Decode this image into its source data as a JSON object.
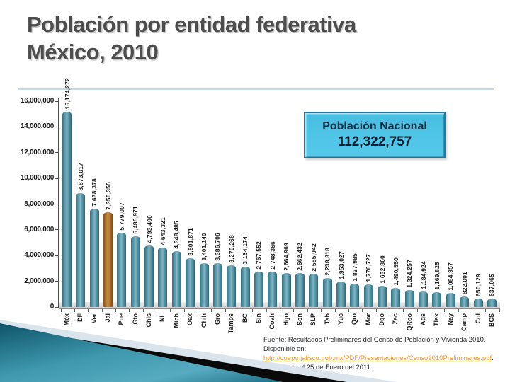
{
  "slide": {
    "title_line1": "Población por entidad federativa",
    "title_line2": "México, 2010"
  },
  "chart_data": {
    "type": "bar",
    "title": "",
    "xlabel": "",
    "ylabel": "",
    "ylim": [
      0,
      16000000
    ],
    "ytick_step": 2000000,
    "grid": false,
    "legend": "none",
    "bar_color": "#4e8fa0",
    "highlight_color": "#a96c26",
    "highlight_category": "Jal",
    "categories": [
      "Méx",
      "DF",
      "Ver",
      "Jal",
      "Pue",
      "Gto",
      "Chis",
      "NL",
      "Mich",
      "Oax",
      "Chih",
      "Gro",
      "Tamps",
      "BC",
      "Sin",
      "Coah",
      "Hgo",
      "Son",
      "SLP",
      "Tab",
      "Yuc",
      "Qro",
      "Mor",
      "Dgo",
      "Zac",
      "QRoo",
      "Ags",
      "Tlax",
      "Nay",
      "Camp",
      "Col",
      "BCS"
    ],
    "values": [
      15174272,
      8873017,
      7638378,
      7350355,
      5779007,
      5485971,
      4793406,
      4643321,
      4348485,
      3801871,
      3401140,
      3386706,
      3270268,
      3154174,
      2767552,
      2748366,
      2664969,
      2662432,
      2585942,
      2238818,
      1953027,
      1827985,
      1776727,
      1632860,
      1490550,
      1324257,
      1184924,
      1169825,
      1084957,
      822001,
      650129,
      637065
    ]
  },
  "callout": {
    "label": "Población Nacional",
    "value": "112,322,757"
  },
  "footer": {
    "prefix": "Fuente: Resultados Preliminares del Censo de Población y Vivienda 2010. Disponible en: ",
    "link": "http://coepo.jalisco.gob.mx/PDF/Presentaciones/Censo2010Preliminares.pdf",
    "suffix": ". Consultado el 25 de Enero del 2011."
  },
  "colors": {
    "title_text": "#4d4d4d",
    "divider": "#c6d9e8",
    "callout_fill": "#50c5e8",
    "callout_border": "#2b7596",
    "link": "#e8993c",
    "wedge_teal_dark": "#0e5468",
    "wedge_teal_light": "#57abc0",
    "wedge_black": "#0a0a0a",
    "wedge_pale": "#d9e4ed"
  }
}
